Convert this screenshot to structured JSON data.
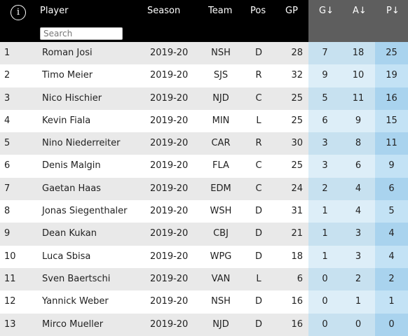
{
  "header": {
    "info_icon": "i",
    "columns": {
      "player": "Player",
      "season": "Season",
      "team": "Team",
      "pos": "Pos",
      "gp": "GP",
      "g": "G↓",
      "a": "A↓",
      "p": "P↓"
    },
    "search_placeholder": "Search",
    "search_value": ""
  },
  "colors": {
    "header_bg": "#000000",
    "sorted_header_bg": "#5e5e5e",
    "stat_cell_bg": "#c7e1f0",
    "points_cell_bg": "#a9d3ee",
    "row_stripe": "#e9e9e9"
  },
  "rows": [
    {
      "rank": "1",
      "player": "Roman Josi",
      "season": "2019-20",
      "team": "NSH",
      "pos": "D",
      "gp": "28",
      "g": "7",
      "a": "18",
      "p": "25"
    },
    {
      "rank": "2",
      "player": "Timo Meier",
      "season": "2019-20",
      "team": "SJS",
      "pos": "R",
      "gp": "32",
      "g": "9",
      "a": "10",
      "p": "19"
    },
    {
      "rank": "3",
      "player": "Nico Hischier",
      "season": "2019-20",
      "team": "NJD",
      "pos": "C",
      "gp": "25",
      "g": "5",
      "a": "11",
      "p": "16"
    },
    {
      "rank": "4",
      "player": "Kevin Fiala",
      "season": "2019-20",
      "team": "MIN",
      "pos": "L",
      "gp": "25",
      "g": "6",
      "a": "9",
      "p": "15"
    },
    {
      "rank": "5",
      "player": "Nino Niederreiter",
      "season": "2019-20",
      "team": "CAR",
      "pos": "R",
      "gp": "30",
      "g": "3",
      "a": "8",
      "p": "11"
    },
    {
      "rank": "6",
      "player": "Denis Malgin",
      "season": "2019-20",
      "team": "FLA",
      "pos": "C",
      "gp": "25",
      "g": "3",
      "a": "6",
      "p": "9"
    },
    {
      "rank": "7",
      "player": "Gaetan Haas",
      "season": "2019-20",
      "team": "EDM",
      "pos": "C",
      "gp": "24",
      "g": "2",
      "a": "4",
      "p": "6"
    },
    {
      "rank": "8",
      "player": "Jonas Siegenthaler",
      "season": "2019-20",
      "team": "WSH",
      "pos": "D",
      "gp": "31",
      "g": "1",
      "a": "4",
      "p": "5"
    },
    {
      "rank": "9",
      "player": "Dean Kukan",
      "season": "2019-20",
      "team": "CBJ",
      "pos": "D",
      "gp": "21",
      "g": "1",
      "a": "3",
      "p": "4"
    },
    {
      "rank": "10",
      "player": "Luca Sbisa",
      "season": "2019-20",
      "team": "WPG",
      "pos": "D",
      "gp": "18",
      "g": "1",
      "a": "3",
      "p": "4"
    },
    {
      "rank": "11",
      "player": "Sven Baertschi",
      "season": "2019-20",
      "team": "VAN",
      "pos": "L",
      "gp": "6",
      "g": "0",
      "a": "2",
      "p": "2"
    },
    {
      "rank": "12",
      "player": "Yannick Weber",
      "season": "2019-20",
      "team": "NSH",
      "pos": "D",
      "gp": "16",
      "g": "0",
      "a": "1",
      "p": "1"
    },
    {
      "rank": "13",
      "player": "Mirco Mueller",
      "season": "2019-20",
      "team": "NJD",
      "pos": "D",
      "gp": "16",
      "g": "0",
      "a": "0",
      "p": "0"
    }
  ]
}
